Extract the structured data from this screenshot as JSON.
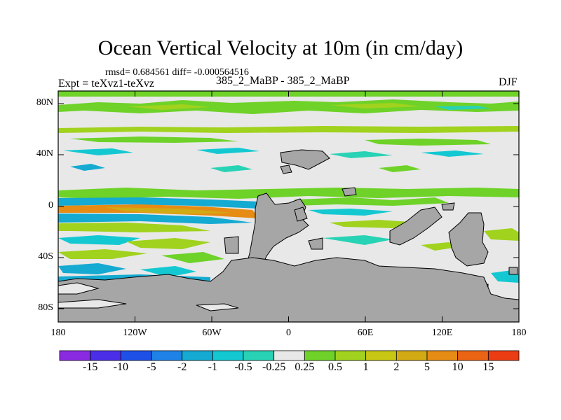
{
  "figure": {
    "title": "Ocean Vertical Velocity at 10m (in cm/day)",
    "stats_text": "rmsd= 0.684561 diff= -0.000564516",
    "experiment_text": "Expt = teXvz1-teXvz",
    "comparison_text": "385_2_MaBP - 385_2_MaBP",
    "season": "DJF"
  },
  "map": {
    "x_tick_labels": [
      "180",
      "120W",
      "60W",
      "0",
      "60E",
      "120E",
      "180"
    ],
    "y_tick_labels": [
      "80N",
      "40N",
      "0",
      "40S",
      "80S"
    ],
    "land_color": "#a6a6a6",
    "ocean_background": "#e8e8e8"
  },
  "colorbar": {
    "colors": [
      "#8a2be2",
      "#4b2ee8",
      "#1e50e8",
      "#1e82e6",
      "#14aad2",
      "#14c8d2",
      "#28d2b4",
      "#e8e8e8",
      "#6ed228",
      "#a0d21e",
      "#c8c814",
      "#d2aa14",
      "#e68c14",
      "#eb6414",
      "#eb3c14"
    ],
    "labels": [
      "-15",
      "-10",
      "-5",
      "-2",
      "-1",
      "-0.5",
      "-0.25",
      "0.25",
      "0.5",
      "1",
      "2",
      "5",
      "10",
      "15"
    ]
  }
}
